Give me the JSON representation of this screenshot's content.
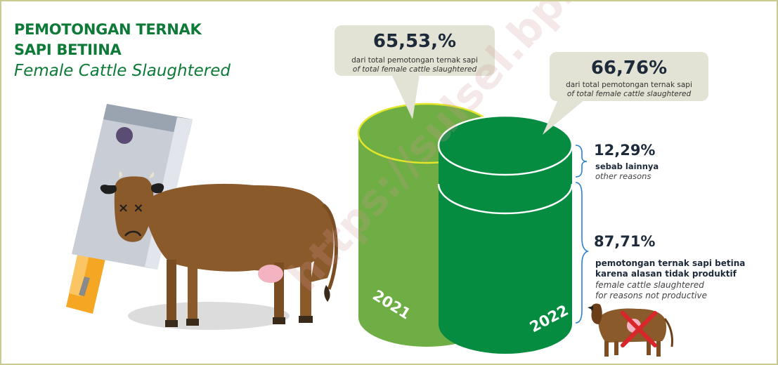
{
  "title": {
    "line1": "PEMOTONGAN TERNAK",
    "line2": "SAPI BETIINA",
    "line3": "Female Cattle Slaughtered"
  },
  "bubble_2021": {
    "value": "65,53,%",
    "text_id": "dari total pemotongan ternak sapi",
    "text_en": "of total female cattle slaughtered"
  },
  "bubble_2022": {
    "value": "66,76%",
    "text_id": "dari total pemotongan ternak sapi",
    "text_en": "of total female cattle slaughtered"
  },
  "years": {
    "y2021": "2021",
    "y2022": "2022"
  },
  "other": {
    "value": "12,29%",
    "label_id": "sebab lainnya",
    "label_en": "other reasons"
  },
  "not_productive": {
    "value": "87,71%",
    "label_id_1": "pemotongan ternak sapi betina",
    "label_id_2": "karena alasan tidak produktif",
    "label_en_1": "female cattle slaughtered",
    "label_en_2": "for reasons not productive"
  },
  "watermark": "https://sulsel.bps.go.id",
  "colors": {
    "title_green": "#0e7a38",
    "cyl_2021": "#6fae44",
    "cyl_2022": "#068c41",
    "bubble": "#e2e3d4",
    "cow": "#8b5a2b"
  },
  "icons": [
    "cleaver-icon",
    "dead-cow-icon",
    "small-cow-icon",
    "cross-icon"
  ]
}
